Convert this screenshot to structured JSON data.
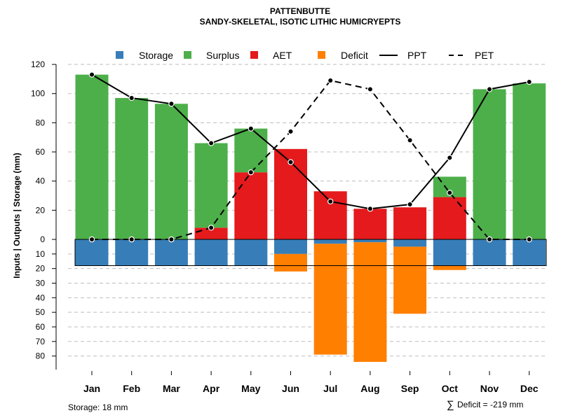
{
  "chart_data": {
    "type": "bar",
    "title": "PATTENBUTTE",
    "subtitle": "SANDY-SKELETAL, ISOTIC LITHIC HUMICRYEPTS",
    "ylabel": "Inputs | Outputs | Storage    (mm)",
    "categories": [
      "Jan",
      "Feb",
      "Mar",
      "Apr",
      "May",
      "Jun",
      "Jul",
      "Aug",
      "Sep",
      "Oct",
      "Nov",
      "Dec"
    ],
    "y_ticks_upper": [
      "120",
      "100",
      "80",
      "60",
      "40",
      "20",
      "0"
    ],
    "y_ticks_lower": [
      "10",
      "20",
      "30",
      "40",
      "50",
      "60",
      "70",
      "80"
    ],
    "ylim": [
      -85,
      120
    ],
    "legend": {
      "placement": "top",
      "items": [
        {
          "label": "Storage",
          "kind": "box",
          "color": "#377EB8"
        },
        {
          "label": "Surplus",
          "kind": "box",
          "color": "#4DAF4A"
        },
        {
          "label": "AET",
          "kind": "box",
          "color": "#E41A1C"
        },
        {
          "label": "Deficit",
          "kind": "box",
          "color": "#FF7F00"
        },
        {
          "label": "PPT",
          "kind": "solid-line",
          "color": "#000000"
        },
        {
          "label": "PET",
          "kind": "dashed-line",
          "color": "#000000"
        }
      ]
    },
    "colors": {
      "storage": "#377EB8",
      "surplus": "#4DAF4A",
      "aet": "#E41A1C",
      "deficit": "#FF7F00",
      "grid": "#BEBEBE"
    },
    "series": [
      {
        "name": "AET",
        "values": [
          0,
          0,
          0,
          8,
          46,
          62,
          33,
          21,
          22,
          29,
          0,
          0
        ]
      },
      {
        "name": "Surplus",
        "values": [
          113,
          97,
          93,
          58,
          30,
          0,
          0,
          0,
          0,
          14,
          103,
          107
        ]
      },
      {
        "name": "Storage",
        "values": [
          18,
          18,
          18,
          18,
          18,
          10,
          3,
          2,
          5,
          18,
          18,
          18
        ]
      },
      {
        "name": "Deficit",
        "values": [
          0,
          0,
          0,
          0,
          0,
          12,
          76,
          82,
          46,
          3,
          0,
          0
        ]
      },
      {
        "name": "PPT",
        "values": [
          113,
          97,
          93,
          66,
          76,
          53,
          26,
          21,
          24,
          56,
          103,
          108
        ]
      },
      {
        "name": "PET",
        "values": [
          0,
          0,
          0,
          8,
          46,
          74,
          109,
          103,
          68,
          32,
          0,
          0
        ]
      }
    ],
    "storage_capacity": 18
  },
  "footer": {
    "storage_text": "Storage: 18 mm",
    "deficit_symbol": "∑",
    "deficit_text": "Deficit = -219 mm"
  }
}
